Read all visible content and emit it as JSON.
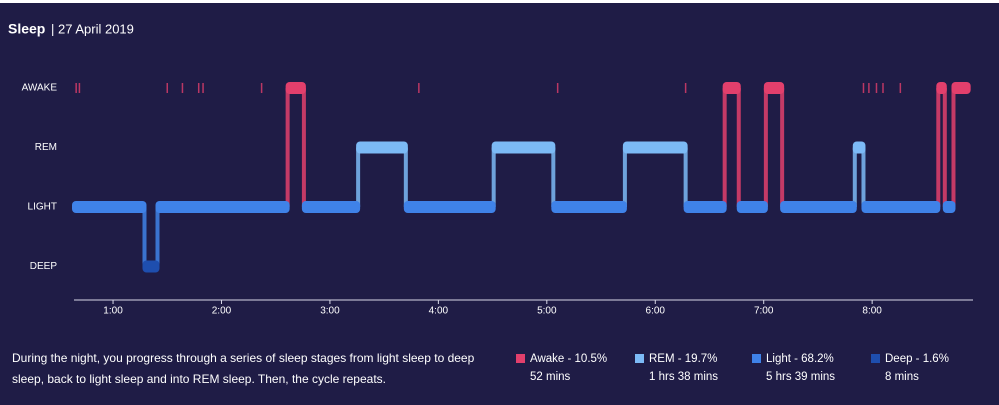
{
  "chart_data": {
    "type": "hypnogram",
    "title": "Sleep",
    "subtitle": "| 27 April 2019",
    "stages": [
      {
        "name": "AWAKE",
        "color": "#e23f6c"
      },
      {
        "name": "REM",
        "color": "#7cbaf6"
      },
      {
        "name": "LIGHT",
        "color": "#3f82e8"
      },
      {
        "name": "DEEP",
        "color": "#1e4eae"
      }
    ],
    "xlim": [
      0.64,
      8.93
    ],
    "xticks": [
      {
        "value": 1,
        "label": "1:00"
      },
      {
        "value": 2,
        "label": "2:00"
      },
      {
        "value": 3,
        "label": "3:00"
      },
      {
        "value": 4,
        "label": "4:00"
      },
      {
        "value": 5,
        "label": "5:00"
      },
      {
        "value": 6,
        "label": "6:00"
      },
      {
        "value": 7,
        "label": "7:00"
      },
      {
        "value": 8,
        "label": "8:00"
      }
    ],
    "segments": [
      {
        "start": 0.64,
        "end": 1.29,
        "stage": "LIGHT"
      },
      {
        "start": 1.29,
        "end": 1.41,
        "stage": "DEEP"
      },
      {
        "start": 1.41,
        "end": 2.61,
        "stage": "LIGHT"
      },
      {
        "start": 2.61,
        "end": 2.76,
        "stage": "AWAKE"
      },
      {
        "start": 2.76,
        "end": 3.26,
        "stage": "LIGHT"
      },
      {
        "start": 3.26,
        "end": 3.7,
        "stage": "REM"
      },
      {
        "start": 3.7,
        "end": 4.51,
        "stage": "LIGHT"
      },
      {
        "start": 4.51,
        "end": 5.06,
        "stage": "REM"
      },
      {
        "start": 5.06,
        "end": 5.72,
        "stage": "LIGHT"
      },
      {
        "start": 5.72,
        "end": 6.28,
        "stage": "REM"
      },
      {
        "start": 6.28,
        "end": 6.64,
        "stage": "LIGHT"
      },
      {
        "start": 6.64,
        "end": 6.77,
        "stage": "AWAKE"
      },
      {
        "start": 6.77,
        "end": 7.02,
        "stage": "LIGHT"
      },
      {
        "start": 7.02,
        "end": 7.17,
        "stage": "AWAKE"
      },
      {
        "start": 7.17,
        "end": 7.84,
        "stage": "LIGHT"
      },
      {
        "start": 7.84,
        "end": 7.92,
        "stage": "REM"
      },
      {
        "start": 7.92,
        "end": 8.61,
        "stage": "LIGHT"
      },
      {
        "start": 8.61,
        "end": 8.67,
        "stage": "AWAKE"
      },
      {
        "start": 8.67,
        "end": 8.75,
        "stage": "LIGHT"
      },
      {
        "start": 8.75,
        "end": 8.89,
        "stage": "AWAKE"
      }
    ],
    "brief_awake": [
      0.66,
      0.69,
      1.5,
      1.64,
      1.79,
      1.83,
      2.37,
      3.82,
      5.1,
      6.28,
      6.69,
      7.92,
      7.97,
      8.04,
      8.1,
      8.26
    ],
    "description": "During the night, you progress through a series of sleep stages from light sleep to deep sleep, back to light sleep and into REM sleep. Then, the cycle repeats.",
    "legend": [
      {
        "label": "Awake - 10.5%",
        "duration": "52 mins",
        "color": "#e23f6c"
      },
      {
        "label": "REM - 19.7%",
        "duration": "1 hrs 38 mins",
        "color": "#7cbaf6"
      },
      {
        "label": "Light - 68.2%",
        "duration": "5 hrs 39 mins",
        "color": "#3f82e8"
      },
      {
        "label": "Deep - 1.6%",
        "duration": "8 mins",
        "color": "#1e4eae"
      }
    ]
  }
}
